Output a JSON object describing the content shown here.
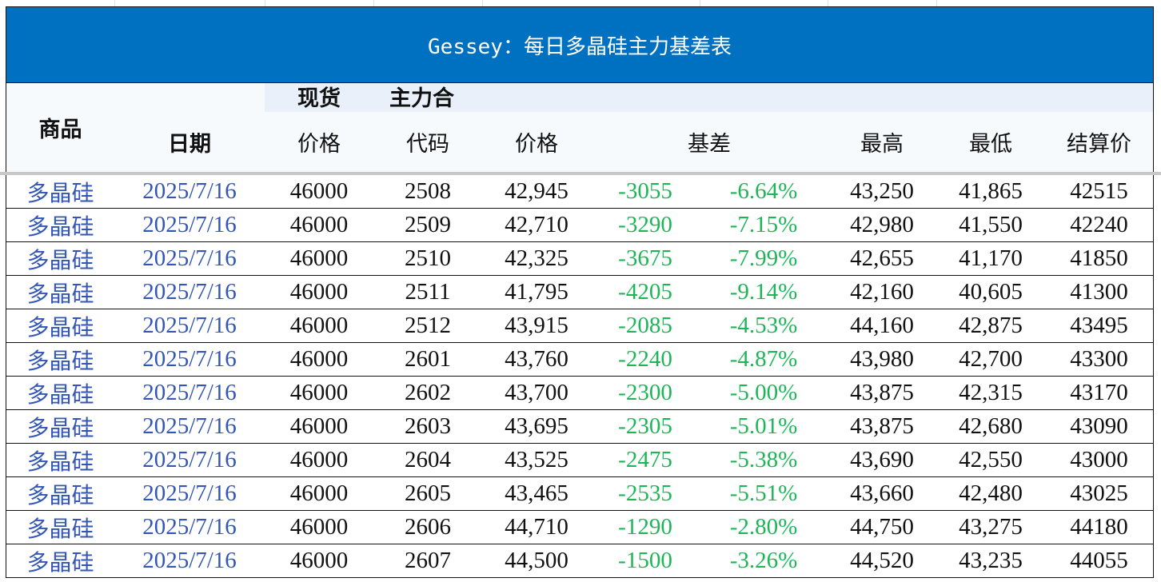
{
  "title": "Gessey：每日多晶硅主力基差表",
  "headers": {
    "product": "商品",
    "spot_group": "现货",
    "main_group": "主力合",
    "date": "日期",
    "spot_price": "价格",
    "code": "代码",
    "main_price": "价格",
    "basis": "基差",
    "high": "最高",
    "low": "最低",
    "settle": "结算价"
  },
  "colors": {
    "title_bg": "#0070c0",
    "negative": "#1db657",
    "link_text": "#3356b6"
  },
  "rows": [
    {
      "product": "多晶硅",
      "date": "2025/7/16",
      "spot": "46000",
      "code": "2508",
      "price": "42,945",
      "basis": "-3055",
      "basis_pct": "-6.64%",
      "high": "43,250",
      "low": "41,865",
      "settle": "42515"
    },
    {
      "product": "多晶硅",
      "date": "2025/7/16",
      "spot": "46000",
      "code": "2509",
      "price": "42,710",
      "basis": "-3290",
      "basis_pct": "-7.15%",
      "high": "42,980",
      "low": "41,550",
      "settle": "42240"
    },
    {
      "product": "多晶硅",
      "date": "2025/7/16",
      "spot": "46000",
      "code": "2510",
      "price": "42,325",
      "basis": "-3675",
      "basis_pct": "-7.99%",
      "high": "42,655",
      "low": "41,170",
      "settle": "41850"
    },
    {
      "product": "多晶硅",
      "date": "2025/7/16",
      "spot": "46000",
      "code": "2511",
      "price": "41,795",
      "basis": "-4205",
      "basis_pct": "-9.14%",
      "high": "42,160",
      "low": "40,605",
      "settle": "41300"
    },
    {
      "product": "多晶硅",
      "date": "2025/7/16",
      "spot": "46000",
      "code": "2512",
      "price": "43,915",
      "basis": "-2085",
      "basis_pct": "-4.53%",
      "high": "44,160",
      "low": "42,875",
      "settle": "43495"
    },
    {
      "product": "多晶硅",
      "date": "2025/7/16",
      "spot": "46000",
      "code": "2601",
      "price": "43,760",
      "basis": "-2240",
      "basis_pct": "-4.87%",
      "high": "43,980",
      "low": "42,700",
      "settle": "43300"
    },
    {
      "product": "多晶硅",
      "date": "2025/7/16",
      "spot": "46000",
      "code": "2602",
      "price": "43,700",
      "basis": "-2300",
      "basis_pct": "-5.00%",
      "high": "43,875",
      "low": "42,315",
      "settle": "43170"
    },
    {
      "product": "多晶硅",
      "date": "2025/7/16",
      "spot": "46000",
      "code": "2603",
      "price": "43,695",
      "basis": "-2305",
      "basis_pct": "-5.01%",
      "high": "43,875",
      "low": "42,680",
      "settle": "43090"
    },
    {
      "product": "多晶硅",
      "date": "2025/7/16",
      "spot": "46000",
      "code": "2604",
      "price": "43,525",
      "basis": "-2475",
      "basis_pct": "-5.38%",
      "high": "43,690",
      "low": "42,550",
      "settle": "43000"
    },
    {
      "product": "多晶硅",
      "date": "2025/7/16",
      "spot": "46000",
      "code": "2605",
      "price": "43,465",
      "basis": "-2535",
      "basis_pct": "-5.51%",
      "high": "43,660",
      "low": "42,480",
      "settle": "43025"
    },
    {
      "product": "多晶硅",
      "date": "2025/7/16",
      "spot": "46000",
      "code": "2606",
      "price": "44,710",
      "basis": "-1290",
      "basis_pct": "-2.80%",
      "high": "44,750",
      "low": "43,275",
      "settle": "44180"
    },
    {
      "product": "多晶硅",
      "date": "2025/7/16",
      "spot": "46000",
      "code": "2607",
      "price": "44,500",
      "basis": "-1500",
      "basis_pct": "-3.26%",
      "high": "44,520",
      "low": "43,235",
      "settle": "44055"
    }
  ]
}
